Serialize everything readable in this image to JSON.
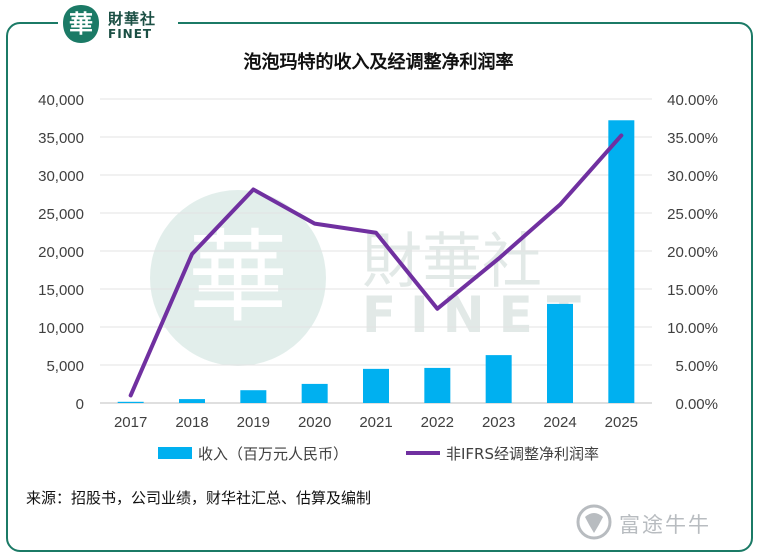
{
  "header": {
    "logo_cn": "財華社",
    "logo_en": "FINET"
  },
  "watermark": {
    "cn": "財華社",
    "en": "FINET"
  },
  "footer": {
    "source": "来源：招股书，公司业绩，财华社汇总、估算及编制",
    "brand": "富途牛牛"
  },
  "colors": {
    "bars": "#00b0f0",
    "line": "#7030a0",
    "frame": "#1b7a66"
  },
  "chart_data": {
    "type": "bar",
    "title": "泡泡玛特的收入及经调整净利润率",
    "categories": [
      "2017",
      "2018",
      "2019",
      "2020",
      "2021",
      "2022",
      "2023",
      "2024",
      "2025"
    ],
    "y_left": {
      "ylim": [
        0,
        40000
      ],
      "ticks": [
        "0",
        "5,000",
        "10,000",
        "15,000",
        "20,000",
        "25,000",
        "30,000",
        "35,000",
        "40,000"
      ]
    },
    "y_right": {
      "ylim": [
        0,
        40
      ],
      "ticks": [
        "0.00%",
        "5.00%",
        "10.00%",
        "15.00%",
        "20.00%",
        "25.00%",
        "30.00%",
        "35.00%",
        "40.00%"
      ]
    },
    "series": [
      {
        "name": "收入（百万元人民币）",
        "type": "bar",
        "axis": "left",
        "values": [
          158,
          515,
          1683,
          2513,
          4491,
          4617,
          6301,
          13038,
          37200
        ]
      },
      {
        "name": "非IFRS经调整净利润率",
        "type": "line",
        "axis": "right",
        "values": [
          1.0,
          19.6,
          28.1,
          23.6,
          22.4,
          12.4,
          19.0,
          26.1,
          35.2
        ]
      }
    ],
    "grid": true,
    "legend": "bottom"
  }
}
